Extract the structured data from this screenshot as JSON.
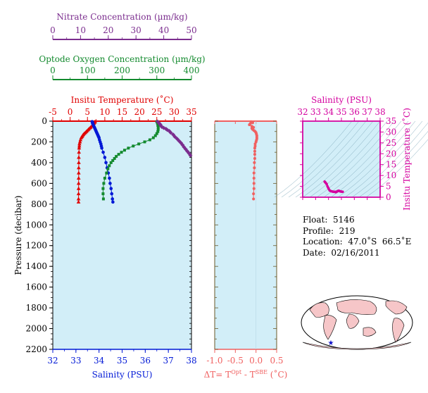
{
  "chart_data": [
    {
      "type": "scatter",
      "panel": "main-profile",
      "y_axis": {
        "label": "Pressure (decibar)",
        "lim": [
          2200,
          0
        ],
        "ticks": [
          0,
          200,
          400,
          600,
          800,
          1000,
          1200,
          1400,
          1600,
          1800,
          2000,
          2200
        ]
      },
      "axes": [
        {
          "name": "nitrate",
          "title": "Nitrate Concentration (µm/kg)",
          "color": "#7b2d8e",
          "lim": [
            0,
            50
          ],
          "ticks": [
            "0",
            "10",
            "20",
            "30",
            "40",
            "50"
          ]
        },
        {
          "name": "oxygen",
          "title": "Optode Oxygen Concentration (µm/kg)",
          "color": "#138a2e",
          "lim": [
            0,
            400
          ],
          "ticks": [
            "0",
            "100",
            "200",
            "300",
            "400"
          ]
        },
        {
          "name": "temperature",
          "title": "Insitu Temperature (˚C)",
          "color": "#e00000",
          "lim": [
            -5,
            35
          ],
          "ticks": [
            "-5",
            "0",
            "5",
            "10",
            "15",
            "20",
            "25",
            "30",
            "35"
          ]
        },
        {
          "name": "salinity",
          "title": "Salinity (PSU)",
          "color": "#0018d6",
          "lim": [
            32,
            38
          ],
          "ticks": [
            "32",
            "33",
            "34",
            "35",
            "36",
            "37",
            "38"
          ]
        }
      ],
      "series": [
        {
          "name": "temperature",
          "color": "#e00000",
          "marker": "triangle",
          "p": [
            5,
            10,
            20,
            30,
            40,
            50,
            60,
            70,
            80,
            90,
            100,
            110,
            120,
            130,
            140,
            150,
            160,
            180,
            200,
            220,
            240,
            260,
            300,
            350,
            400,
            450,
            500,
            550,
            600,
            650,
            700,
            750,
            780
          ],
          "v": [
            7.2,
            7.1,
            6.9,
            6.7,
            6.5,
            6.2,
            5.9,
            5.6,
            5.3,
            5.0,
            4.7,
            4.4,
            4.1,
            3.8,
            3.6,
            3.4,
            3.2,
            3.0,
            2.85,
            2.7,
            2.65,
            2.6,
            2.55,
            2.5,
            2.5,
            2.48,
            2.47,
            2.46,
            2.45,
            2.44,
            2.43,
            2.42,
            2.42
          ]
        },
        {
          "name": "salinity",
          "color": "#0018d6",
          "marker": "circle",
          "p": [
            5,
            10,
            20,
            30,
            40,
            50,
            60,
            70,
            80,
            90,
            100,
            110,
            120,
            130,
            140,
            150,
            160,
            180,
            200,
            220,
            240,
            260,
            300,
            350,
            400,
            450,
            500,
            550,
            600,
            650,
            700,
            750,
            780
          ],
          "v": [
            33.7,
            33.72,
            33.72,
            33.74,
            33.76,
            33.78,
            33.8,
            33.82,
            33.84,
            33.86,
            33.88,
            33.9,
            33.92,
            33.94,
            33.96,
            33.98,
            34.0,
            34.02,
            34.05,
            34.08,
            34.1,
            34.12,
            34.18,
            34.25,
            34.3,
            34.35,
            34.4,
            34.45,
            34.48,
            34.52,
            34.55,
            34.58,
            34.6
          ]
        },
        {
          "name": "oxygen",
          "color": "#138a2e",
          "marker": "square",
          "p": [
            5,
            20,
            40,
            60,
            80,
            100,
            120,
            140,
            160,
            180,
            200,
            220,
            240,
            260,
            280,
            300,
            320,
            340,
            360,
            380,
            400,
            430,
            460,
            500,
            550,
            600,
            650,
            700,
            750
          ],
          "v": [
            300,
            302,
            303,
            304,
            304,
            303,
            300,
            296,
            290,
            280,
            265,
            248,
            232,
            218,
            207,
            198,
            190,
            183,
            178,
            173,
            168,
            163,
            159,
            155,
            150,
            147,
            145,
            145,
            146
          ]
        },
        {
          "name": "nitrate",
          "color": "#7b2d8e",
          "marker": "diamond",
          "p": [
            5,
            15,
            25,
            35,
            45,
            55,
            65,
            75,
            85,
            95,
            110,
            130,
            150,
            170,
            190,
            210,
            230,
            250,
            270,
            290,
            310,
            330
          ],
          "v": [
            37.8,
            38.2,
            38.5,
            38.8,
            39.0,
            39.3,
            40.0,
            40.8,
            41.3,
            42.0,
            42.5,
            43.4,
            44.0,
            44.8,
            45.5,
            46.2,
            46.8,
            47.3,
            47.9,
            48.5,
            49.1,
            49.6
          ]
        }
      ]
    },
    {
      "type": "scatter",
      "panel": "delta-t",
      "xlabel_prefix": "ΔT= T",
      "xlabel_sup1": "Opt",
      "xlabel_mid": " - T",
      "xlabel_sup2": "SBE",
      "xlabel_suffix": " (˚C)",
      "color": "#f06060",
      "xlim": [
        -1.0,
        0.5
      ],
      "ticks": [
        "-1.0",
        "-0.5",
        "0.0",
        "0.5"
      ],
      "series": [
        {
          "p": [
            5,
            15,
            25,
            35,
            50,
            60,
            70,
            80,
            90,
            100,
            110,
            125,
            140,
            155,
            170,
            185,
            200,
            220,
            240,
            260,
            290,
            320,
            360,
            400,
            450,
            500,
            550,
            600,
            650,
            700,
            750
          ],
          "v": [
            -0.12,
            -0.08,
            -0.14,
            -0.16,
            -0.1,
            -0.06,
            -0.1,
            -0.08,
            -0.05,
            -0.02,
            0.0,
            0.01,
            0.02,
            0.02,
            0.02,
            0.01,
            0.0,
            -0.02,
            -0.02,
            -0.03,
            -0.03,
            -0.03,
            -0.03,
            -0.04,
            -0.04,
            -0.05,
            -0.05,
            -0.05,
            -0.05,
            -0.06,
            -0.06
          ]
        }
      ]
    },
    {
      "type": "scatter",
      "panel": "ts-diagram",
      "title": "Salinity (PSU)",
      "ylabel": "Insitu Temperature (˚C)",
      "color": "#d4009e",
      "xlim": [
        32,
        38
      ],
      "ylim": [
        0,
        35
      ],
      "xticks": [
        "32",
        "33",
        "34",
        "35",
        "36",
        "37",
        "38"
      ],
      "yticks": [
        "0",
        "5",
        "10",
        "15",
        "20",
        "25",
        "30",
        "35"
      ],
      "series": [
        {
          "s": [
            33.7,
            33.74,
            33.8,
            33.86,
            33.92,
            33.98,
            34.02,
            34.08,
            34.12,
            34.18,
            34.25,
            34.3,
            34.35,
            34.4,
            34.45,
            34.5,
            34.55,
            34.6,
            34.6,
            34.62,
            34.66,
            34.7,
            34.75,
            34.8,
            34.85,
            34.9,
            34.95,
            35.0,
            35.05,
            35.1
          ],
          "t": [
            7.2,
            6.9,
            6.5,
            6.0,
            5.0,
            4.3,
            3.8,
            3.2,
            3.0,
            2.8,
            2.7,
            2.6,
            2.55,
            2.5,
            2.48,
            2.46,
            2.44,
            2.42,
            2.4,
            2.5,
            2.6,
            2.8,
            2.9,
            3.0,
            2.8,
            2.7,
            2.6,
            2.6,
            2.5,
            2.5
          ]
        }
      ]
    }
  ],
  "info": {
    "float": "Float:  5146",
    "profile": "Profile:  219",
    "location": "Location:  47.0˚S  66.5˚E",
    "date": "Date:  02/16/2011"
  },
  "map": {
    "marker_color": "#1010c8",
    "land_color": "#f6c6c8",
    "ocean_color": "#ffffff"
  }
}
